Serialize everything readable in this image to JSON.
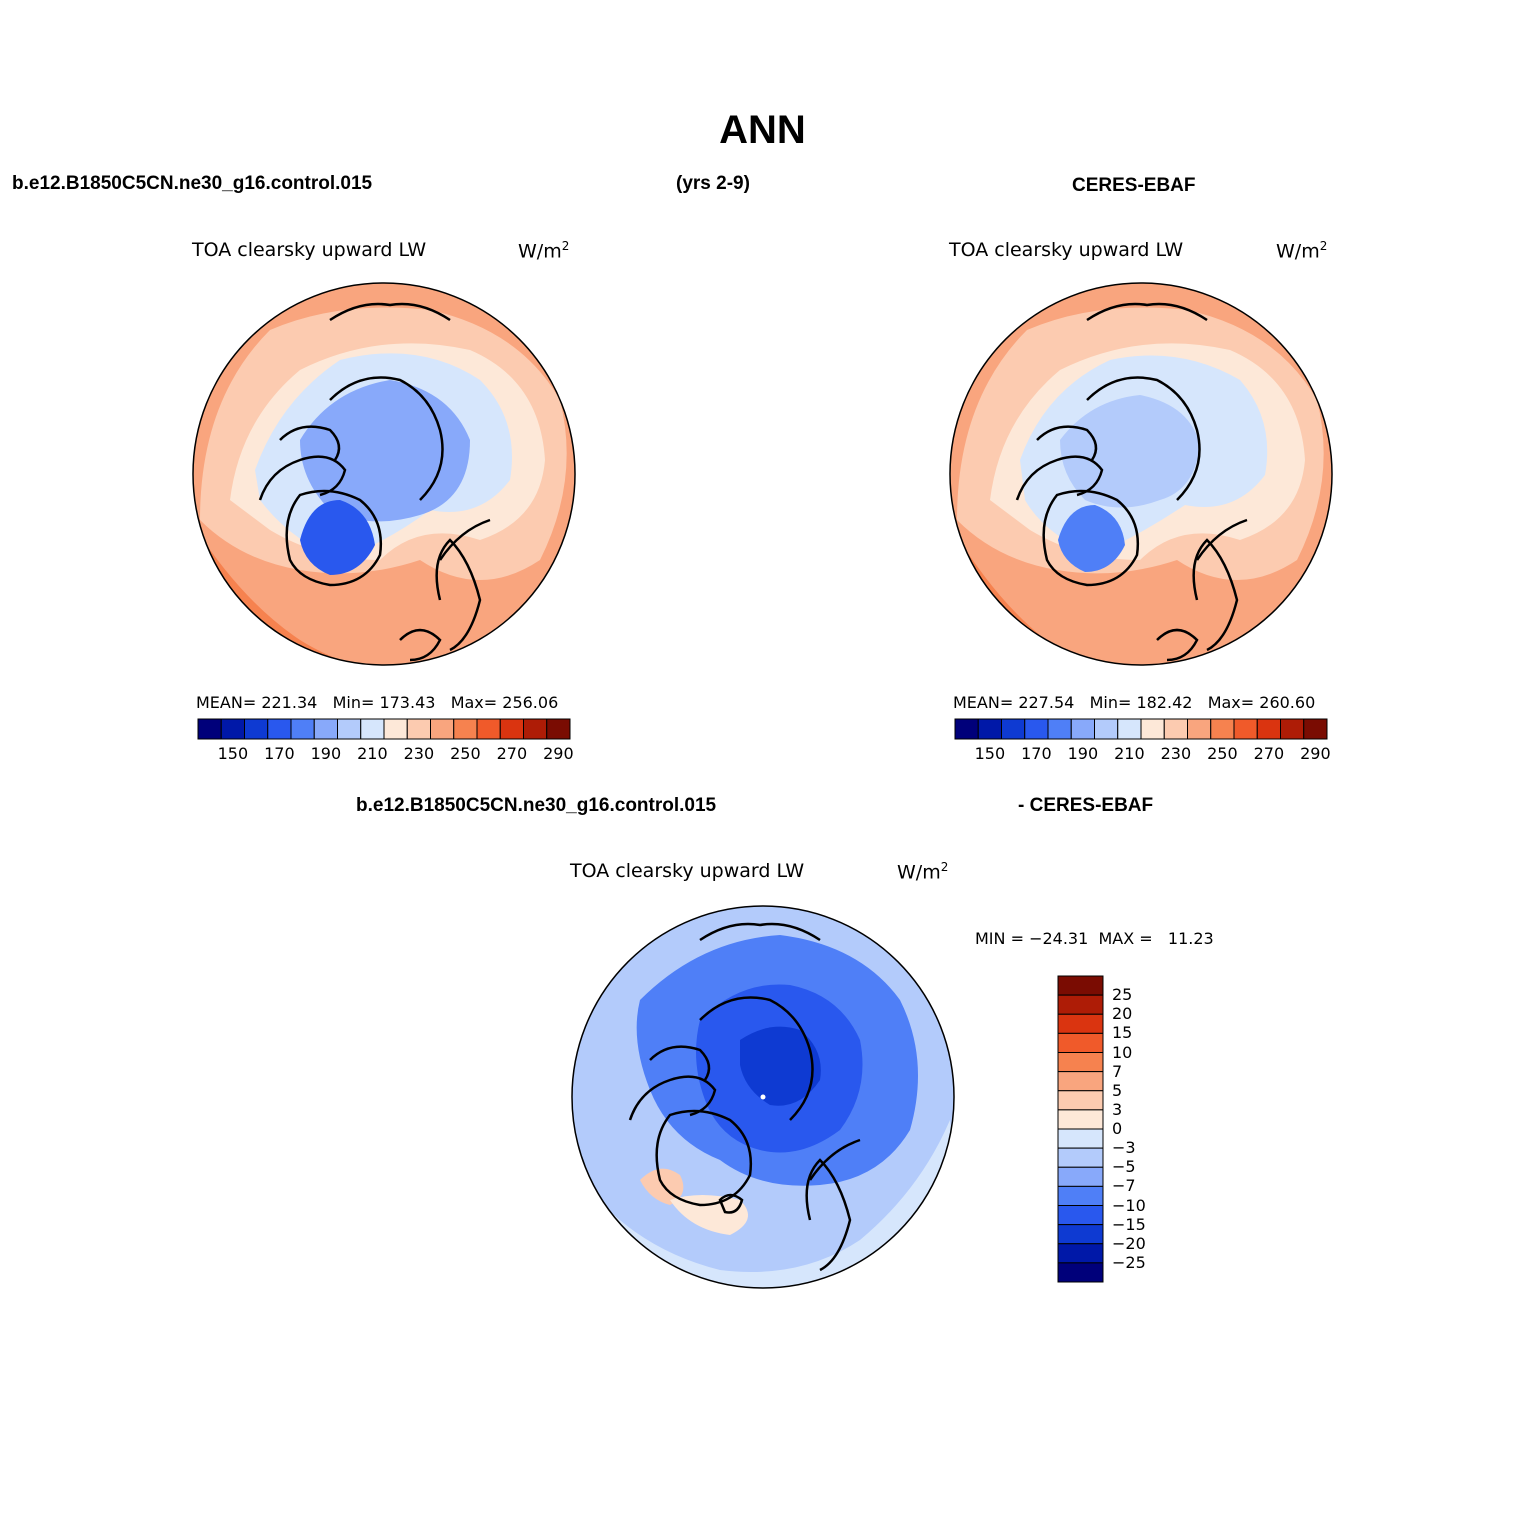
{
  "header": {
    "title": "ANN",
    "case_name": "b.e12.B1850C5CN.ne30_g16.control.015",
    "years": "(yrs 2-9)",
    "obs_name": "CERES-EBAF"
  },
  "panels": [
    {
      "variable": "TOA clearsky upward LW",
      "units_base": "W/m",
      "units_sup": "2",
      "stats": "MEAN= 221.34   Min= 173.43   Max= 256.06",
      "colorbar_labels": [
        "150",
        "170",
        "190",
        "210",
        "230",
        "250",
        "270",
        "290"
      ]
    },
    {
      "variable": "TOA clearsky upward LW",
      "units_base": "W/m",
      "units_sup": "2",
      "stats": "MEAN= 227.54   Min= 182.42   Max= 260.60",
      "colorbar_labels": [
        "150",
        "170",
        "190",
        "210",
        "230",
        "250",
        "270",
        "290"
      ]
    }
  ],
  "diff": {
    "case_name": "b.e12.B1850C5CN.ne30_g16.control.015",
    "suffix": "- CERES-EBAF",
    "variable": "TOA clearsky upward LW",
    "units_base": "W/m",
    "units_sup": "2",
    "minmax": "MIN = −24.31  MAX =   11.23",
    "colorbar_labels": [
      "25",
      "20",
      "15",
      "10",
      "7",
      "5",
      "3",
      "0",
      "−3",
      "−5",
      "−7",
      "−10",
      "−15",
      "−20",
      "−25"
    ]
  },
  "colors": {
    "abs_scale": [
      "#00007a",
      "#0018a8",
      "#0e3ad2",
      "#2958ee",
      "#4f7ff7",
      "#88a9fa",
      "#b3cbfb",
      "#d6e6fc",
      "#fde8d8",
      "#fccbb0",
      "#f9a57e",
      "#f6824f",
      "#f05a2a",
      "#da3410",
      "#ae1c06",
      "#7a0c02"
    ],
    "diff_scale": [
      "#7a0c02",
      "#ae1c06",
      "#da3410",
      "#f05a2a",
      "#f6824f",
      "#f9a57e",
      "#fccbb0",
      "#fde8d8",
      "#d6e6fc",
      "#b3cbfb",
      "#88a9fa",
      "#4f7ff7",
      "#2958ee",
      "#0e3ad2",
      "#0018a8",
      "#00007a"
    ]
  }
}
